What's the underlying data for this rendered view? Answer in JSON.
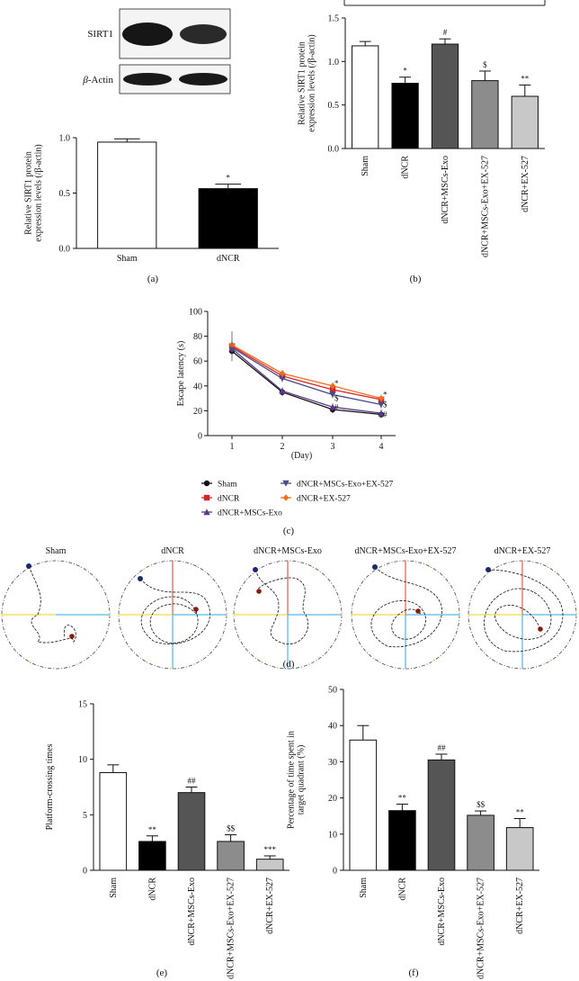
{
  "panel_labels": {
    "a": "(a)",
    "b": "(b)",
    "c": "(c)",
    "d": "(d)",
    "e": "(e)",
    "f": "(f)"
  },
  "blot": {
    "rows": [
      "SIRT1",
      "β-Actin"
    ],
    "actin_prefix": "β",
    "actin_suffix": "-Actin"
  },
  "chart_data": [
    {
      "id": "a",
      "type": "bar",
      "title": "",
      "ylabel": "Relative SIRT1 protein expression levels (/β-actin)",
      "ylabel_lines": [
        "Relative SIRT1 protein",
        "expression levels (/β-actin)"
      ],
      "categories": [
        "Sham",
        "dNCR"
      ],
      "values": [
        0.96,
        0.54
      ],
      "errors": [
        0.03,
        0.04
      ],
      "fills": [
        "#ffffff",
        "#000000"
      ],
      "sig": [
        "",
        "*"
      ],
      "ylim": [
        0,
        1.0
      ],
      "yticks": [
        "0.0",
        "0.5",
        "1.0"
      ],
      "ytick_values": [
        0,
        0.5,
        1.0
      ],
      "rotate_labels": false
    },
    {
      "id": "b",
      "type": "bar",
      "ylabel": "Relative SIRT1 protein expression levels (/β-actin)",
      "ylabel_lines": [
        "Relative SIRT1 protein",
        "expression levels (/β-actin)"
      ],
      "categories": [
        "Sham",
        "dNCR",
        "dNCR+MSCs-Exo",
        "dNCR+MSCs-Exo+EX-527",
        "dNCR+EX-527"
      ],
      "values": [
        1.18,
        0.75,
        1.2,
        0.78,
        0.6
      ],
      "errors": [
        0.05,
        0.07,
        0.06,
        0.11,
        0.13
      ],
      "fills": [
        "#ffffff",
        "#000000",
        "#555555",
        "#8c8c8c",
        "#c8c8c8"
      ],
      "sig": [
        "",
        "*",
        "#",
        "$",
        "**"
      ],
      "ylim": [
        0,
        1.5
      ],
      "yticks": [
        "0.0",
        "0.5",
        "1.0",
        "1.5"
      ],
      "ytick_values": [
        0,
        0.5,
        1.0,
        1.5
      ],
      "rotate_labels": true
    },
    {
      "id": "c",
      "type": "line",
      "xlabel": "(Day)",
      "ylabel": "Escape latency (s)",
      "x": [
        1,
        2,
        3,
        4
      ],
      "xticks": [
        "1",
        "2",
        "3",
        "4"
      ],
      "ylim": [
        0,
        100
      ],
      "yticks": [
        "0",
        "20",
        "40",
        "60",
        "80",
        "100"
      ],
      "ytick_values": [
        0,
        20,
        40,
        60,
        80,
        100
      ],
      "series": [
        {
          "name": "Sham",
          "values": [
            68,
            35,
            21,
            17
          ],
          "color": "#111111",
          "marker": "circle"
        },
        {
          "name": "dNCR",
          "values": [
            72,
            48,
            37,
            29
          ],
          "color": "#d62728",
          "marker": "square"
        },
        {
          "name": "dNCR+MSCs-Exo",
          "values": [
            70,
            36,
            23,
            18
          ],
          "color": "#5a3a8a",
          "marker": "triangle-up"
        },
        {
          "name": "dNCR+MSCs-Exo+EX-527",
          "values": [
            71,
            46,
            33,
            25
          ],
          "color": "#4a4a88",
          "marker": "triangle-down"
        },
        {
          "name": "dNCR+EX-527",
          "values": [
            73,
            50,
            40,
            30
          ],
          "color": "#ff6a1a",
          "marker": "diamond"
        }
      ],
      "annotations": [
        {
          "x": 3,
          "y": 42,
          "text": "*"
        },
        {
          "x": 3,
          "y": 30,
          "text": "$"
        },
        {
          "x": 3,
          "y": 23,
          "text": "#"
        },
        {
          "x": 4,
          "y": 33,
          "text": "*"
        },
        {
          "x": 4,
          "y": 25,
          "text": "$"
        },
        {
          "x": 4,
          "y": 17,
          "text": "#"
        }
      ]
    },
    {
      "id": "e",
      "type": "bar",
      "ylabel": "Platform-crossing times",
      "ylabel_lines": [
        "Platform-crossing times"
      ],
      "categories": [
        "Sham",
        "dNCR",
        "dNCR+MSCs-Exo",
        "dNCR+MSCs-Exo+EX-527",
        "dNCR+EX-527"
      ],
      "values": [
        8.8,
        2.6,
        7.0,
        2.6,
        1.0
      ],
      "errors": [
        0.7,
        0.5,
        0.5,
        0.6,
        0.3
      ],
      "fills": [
        "#ffffff",
        "#000000",
        "#555555",
        "#8c8c8c",
        "#c8c8c8"
      ],
      "sig": [
        "",
        "**",
        "##",
        "$$",
        "***"
      ],
      "ylim": [
        0,
        15
      ],
      "yticks": [
        "0",
        "5",
        "10",
        "15"
      ],
      "ytick_values": [
        0,
        5,
        10,
        15
      ],
      "rotate_labels": true
    },
    {
      "id": "f",
      "type": "bar",
      "ylabel": "Percentage of time spent in target quadrant (%)",
      "ylabel_lines": [
        "Percentage of time spent in",
        "target quadrant (%)"
      ],
      "categories": [
        "Sham",
        "dNCR",
        "dNCR+MSCs-Exo",
        "dNCR+MSCs-Exo+EX-527",
        "dNCR+EX-527"
      ],
      "values": [
        36,
        16.5,
        30.5,
        15.2,
        11.8
      ],
      "errors": [
        4,
        1.8,
        1.6,
        1.2,
        2.5
      ],
      "fills": [
        "#ffffff",
        "#000000",
        "#555555",
        "#8c8c8c",
        "#c8c8c8"
      ],
      "sig": [
        "",
        "**",
        "##",
        "$$",
        "**"
      ],
      "ylim": [
        0,
        50
      ],
      "yticks": [
        "0",
        "10",
        "20",
        "30",
        "40",
        "50"
      ],
      "ytick_values": [
        0,
        10,
        20,
        30,
        40,
        50
      ],
      "rotate_labels": true
    }
  ],
  "traces": {
    "titles": [
      "Sham",
      "dNCR",
      "dNCR+MSCs-Exo",
      "dNCR+MSCs-Exo+EX-527",
      "dNCR+EX-527"
    ],
    "platform_color": "#1a2a6c",
    "start_color": "#8b1a0a",
    "quadrant_colors": [
      "#e8342a",
      "#2aa8d8",
      "#f2d21a",
      "#3b8a3b"
    ]
  }
}
